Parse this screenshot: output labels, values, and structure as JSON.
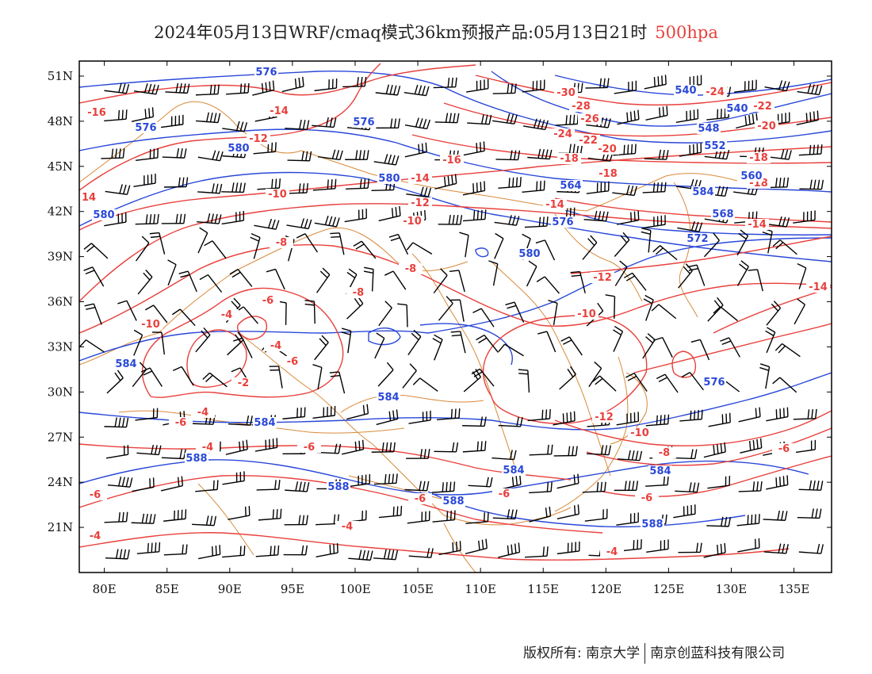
{
  "title": {
    "main": "2024年05月13日WRF/cmaq模式36km预报产品:05月13日21时",
    "level": "500hpa"
  },
  "colors": {
    "temperature_contour": "#e8403c",
    "height_contour": "#2a48d8",
    "boundary": "#d98a3a",
    "wind_barb": "#000000",
    "title_level": "#e8403c"
  },
  "map": {
    "lon_range": [
      78,
      138
    ],
    "lat_range": [
      18,
      52
    ],
    "x_ticks": [
      "80E",
      "85E",
      "90E",
      "95E",
      "100E",
      "105E",
      "110E",
      "115E",
      "120E",
      "125E",
      "130E",
      "135E"
    ],
    "y_ticks": [
      "51N",
      "48N",
      "45N",
      "42N",
      "39N",
      "36N",
      "33N",
      "30N",
      "27N",
      "24N",
      "21N"
    ],
    "temperature_labels": [
      "-16",
      "-14",
      "-12",
      "-10",
      "-8",
      "-6",
      "-4",
      "-2",
      "-30",
      "-28",
      "-26",
      "-24",
      "-22",
      "-20",
      "-18",
      "14"
    ],
    "height_labels": [
      "576",
      "580",
      "584",
      "588",
      "568",
      "572",
      "548",
      "552",
      "540",
      "560",
      "564"
    ]
  },
  "copyright": {
    "left": "版权所有: 南京大学",
    "right": "南京创蓝科技有限公司"
  }
}
